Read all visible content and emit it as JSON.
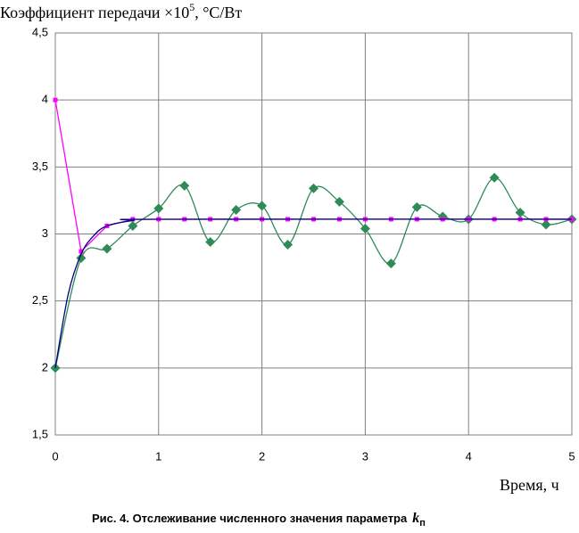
{
  "chart_data": {
    "type": "line",
    "y_label": {
      "text": "Коэффициент передачи ×10",
      "sup": "5",
      "unit": ", °C/Вт"
    },
    "x_label": "Время, ч",
    "caption": {
      "text": "Рис. 4. Отслеживание численного значения параметра",
      "symbol": "k",
      "sub": "п"
    },
    "xlim": [
      0,
      5
    ],
    "xticks": [
      0,
      1,
      2,
      3,
      4,
      5
    ],
    "ylim": [
      1.5,
      4.5
    ],
    "yticks": [
      {
        "value": 1.5,
        "label": "1,5"
      },
      2,
      {
        "value": 2.5,
        "label": "2,5"
      },
      3,
      {
        "value": 3.5,
        "label": "3,5"
      },
      4,
      {
        "value": 4.5,
        "label": "4,5"
      }
    ],
    "grid": true,
    "series": [
      {
        "color": "#2e8b57",
        "marker": "diamond",
        "smooth": true,
        "x": [
          0,
          0.25,
          0.5,
          0.75,
          1,
          1.25,
          1.5,
          1.75,
          2,
          2.25,
          2.5,
          2.75,
          3,
          3.25,
          3.5,
          3.75,
          4,
          4.25,
          4.5,
          4.75,
          5
        ],
        "values": [
          2.0,
          2.82,
          2.89,
          3.06,
          3.19,
          3.36,
          2.94,
          3.18,
          3.21,
          2.92,
          3.34,
          3.24,
          3.04,
          2.78,
          3.2,
          3.13,
          3.11,
          3.42,
          3.16,
          3.07,
          3.11
        ]
      },
      {
        "color": "#ff00ff",
        "marker": "square",
        "smooth": false,
        "x": [
          0,
          0.25,
          0.5,
          0.75,
          1,
          1.25,
          1.5,
          1.75,
          2,
          2.25,
          2.5,
          2.75,
          3,
          3.25,
          3.5,
          3.75,
          4,
          4.25,
          4.5,
          4.75,
          5
        ],
        "values": [
          4.0,
          2.87,
          3.06,
          3.11,
          3.11,
          3.11,
          3.11,
          3.11,
          3.11,
          3.11,
          3.11,
          3.11,
          3.11,
          3.11,
          3.11,
          3.11,
          3.11,
          3.11,
          3.11,
          3.11,
          3.11
        ]
      },
      {
        "color": "#000080",
        "marker": "none",
        "smooth": true,
        "x": [
          0,
          0.125,
          0.25,
          0.375,
          0.5,
          0.75,
          1,
          5
        ],
        "values": [
          2.0,
          2.55,
          2.85,
          2.99,
          3.06,
          3.1,
          3.11,
          3.11
        ]
      }
    ]
  }
}
